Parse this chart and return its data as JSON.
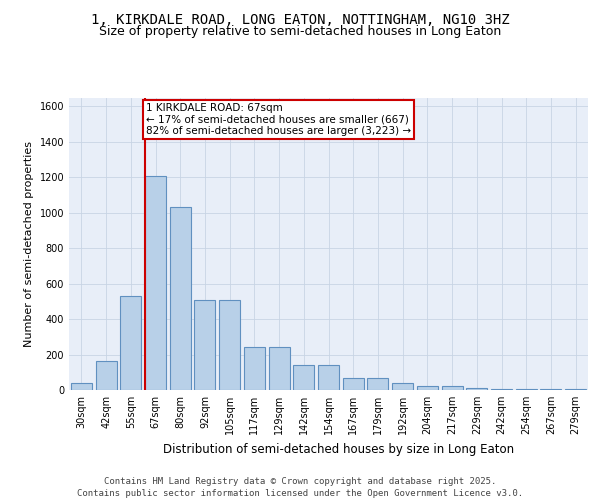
{
  "title1": "1, KIRKDALE ROAD, LONG EATON, NOTTINGHAM, NG10 3HZ",
  "title2": "Size of property relative to semi-detached houses in Long Eaton",
  "xlabel": "Distribution of semi-detached houses by size in Long Eaton",
  "ylabel": "Number of semi-detached properties",
  "bin_labels": [
    "30sqm",
    "42sqm",
    "55sqm",
    "67sqm",
    "80sqm",
    "92sqm",
    "105sqm",
    "117sqm",
    "129sqm",
    "142sqm",
    "154sqm",
    "167sqm",
    "179sqm",
    "192sqm",
    "204sqm",
    "217sqm",
    "229sqm",
    "242sqm",
    "254sqm",
    "267sqm",
    "279sqm"
  ],
  "values": [
    40,
    165,
    530,
    1205,
    1030,
    505,
    505,
    245,
    245,
    140,
    140,
    65,
    65,
    40,
    20,
    20,
    10,
    5,
    5,
    3,
    3
  ],
  "bar_color": "#b8d0e8",
  "bar_edge_color": "#6090c0",
  "vline_color": "#cc0000",
  "annotation_text": "1 KIRKDALE ROAD: 67sqm\n← 17% of semi-detached houses are smaller (667)\n82% of semi-detached houses are larger (3,223) →",
  "vline_bin_index": 3,
  "ylim": [
    0,
    1650
  ],
  "yticks": [
    0,
    200,
    400,
    600,
    800,
    1000,
    1200,
    1400,
    1600
  ],
  "grid_color": "#c8d4e4",
  "bg_color": "#e8eef8",
  "footer": "Contains HM Land Registry data © Crown copyright and database right 2025.\nContains public sector information licensed under the Open Government Licence v3.0.",
  "title1_fontsize": 10,
  "title2_fontsize": 9,
  "xlabel_fontsize": 8.5,
  "ylabel_fontsize": 8,
  "tick_fontsize": 7,
  "footer_fontsize": 6.5,
  "annotation_fontsize": 7.5
}
